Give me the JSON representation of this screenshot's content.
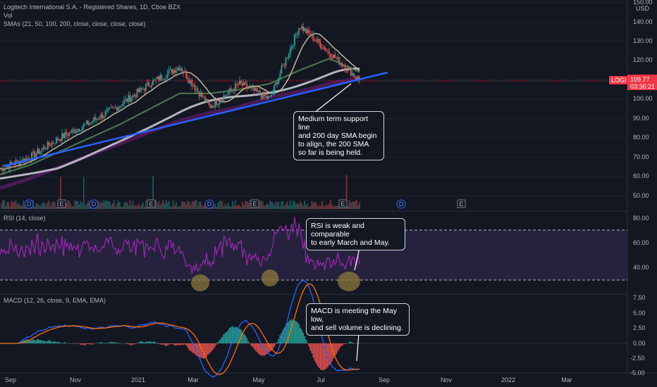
{
  "header": {
    "title": "Logitech International S.A. - Registered Shares, 1D, Cboe BZX",
    "vol_label": "Vol",
    "sma_label": "SMAs (21, 50, 100, 200, close, close, close, close)"
  },
  "price_axis": {
    "currency": "USD",
    "ticks": [
      "150.00",
      "140.00",
      "130.00",
      "120.00",
      "110.00",
      "100.00",
      "90.00",
      "80.00",
      "70.00",
      "60.00",
      "50.00"
    ],
    "symbol_tag": "LOGI",
    "last_price": "109.77",
    "countdown": "03:36:21",
    "tag_color": "#f23645"
  },
  "rsi_panel": {
    "label": "RSI (14, close)",
    "ticks": [
      "80.00",
      "60.00",
      "40.00"
    ],
    "line_color": "#9c27b0",
    "band_color": "#7e57c2"
  },
  "macd_panel": {
    "label": "MACD (12, 26, close, 9, EMA, EMA)",
    "ticks": [
      "7.50",
      "5.00",
      "2.50",
      "0.00",
      "-2.50",
      "-5.00"
    ],
    "macd_color": "#2962ff",
    "signal_color": "#ff6d00"
  },
  "time_axis": {
    "ticks": [
      "Sep",
      "Nov",
      "2021",
      "Mar",
      "May",
      "Jul",
      "Sep",
      "Nov",
      "2022",
      "Mar"
    ]
  },
  "event_markers": {
    "dividend": "D",
    "earnings": "E"
  },
  "annotations": {
    "price_note": "Medium term support line\nand 200 day SMA begin\nto align, the 200 SMA\nso far is being held.",
    "rsi_note": "RSI is weak and comparable\nto early March and May.",
    "macd_note": "MACD is meeting the May low,\nand sell volume is declining."
  },
  "chart_data": {
    "type": "line",
    "x": [
      "2020-08",
      "2020-09",
      "2020-10",
      "2020-11",
      "2020-12",
      "2021-01",
      "2021-02",
      "2021-03",
      "2021-04",
      "2021-05",
      "2021-06",
      "2021-07",
      "2021-08"
    ],
    "series": [
      {
        "values": [
          64,
          70,
          80,
          88,
          97,
          108,
          117,
          96,
          108,
          100,
          138,
          124,
          110
        ]
      },
      {
        "values": [
          61,
          66,
          73,
          80,
          87,
          95,
          103,
          103,
          105,
          108,
          115,
          121,
          114
        ]
      },
      {
        "values": [
          54,
          59,
          65,
          71,
          77,
          83,
          89,
          93,
          96,
          101,
          104,
          108,
          111
        ]
      }
    ],
    "ylim": [
      45,
      152
    ]
  }
}
